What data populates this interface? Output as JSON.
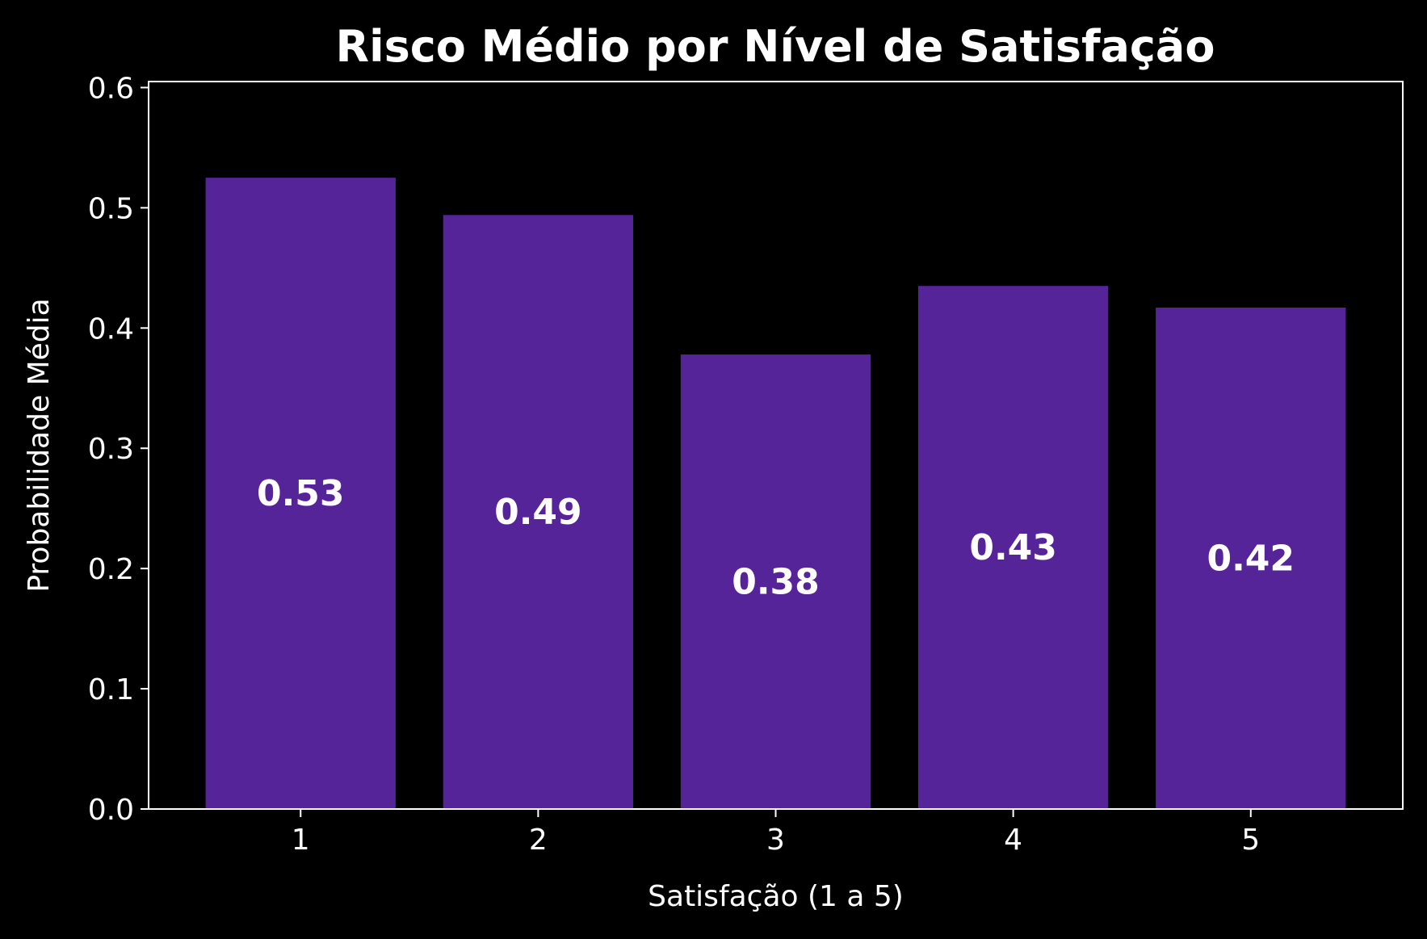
{
  "chart_data": {
    "type": "bar",
    "title": "Risco Médio por Nível de Satisfação",
    "xlabel": "Satisfação (1 a 5)",
    "ylabel": "Probabilidade Média",
    "categories": [
      "1",
      "2",
      "3",
      "4",
      "5"
    ],
    "values": [
      0.525,
      0.494,
      0.378,
      0.435,
      0.417
    ],
    "data_labels": [
      "0.53",
      "0.49",
      "0.38",
      "0.43",
      "0.42"
    ],
    "ylim": [
      0,
      0.605
    ],
    "yticks": [
      "0.0",
      "0.1",
      "0.2",
      "0.3",
      "0.4",
      "0.5",
      "0.6"
    ],
    "grid": false,
    "legend": "none",
    "colors": {
      "background": "#000000",
      "bar": "#552499",
      "text": "#ffffff",
      "axes": "#ffffff"
    }
  }
}
